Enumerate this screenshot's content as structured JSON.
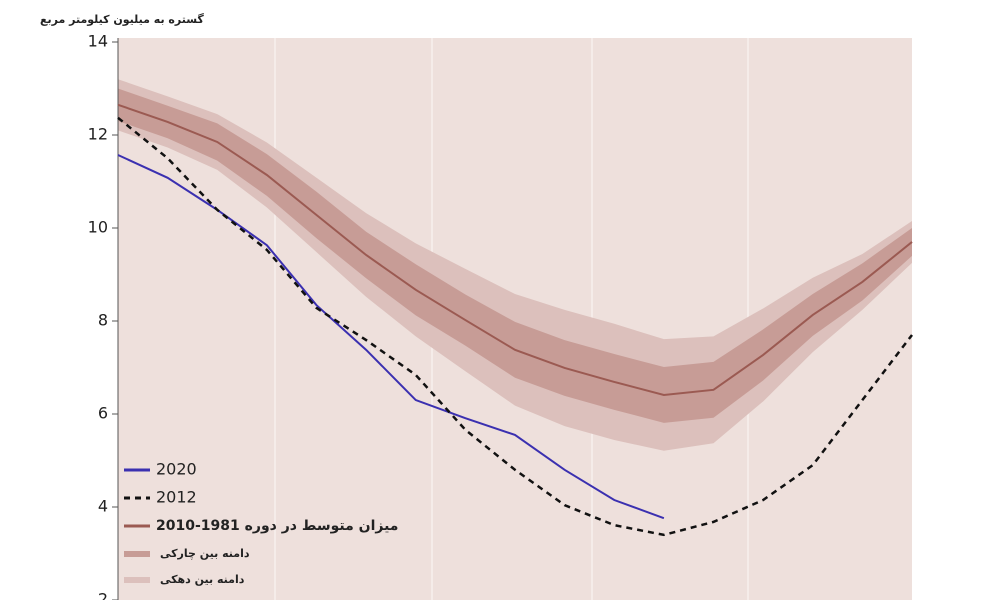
{
  "chart_data": {
    "type": "line",
    "y_label": "گستره به میلیون کیلومتر مربع",
    "categories": [
      null,
      null,
      null,
      null,
      null,
      null,
      null,
      null,
      null,
      null,
      null,
      null,
      null,
      null,
      null,
      null,
      null
    ],
    "ylim": [
      2,
      14
    ],
    "yticks": [
      2,
      4,
      6,
      8,
      10,
      12,
      14
    ],
    "bands": [
      {
        "name": "دامنه بین دهکی",
        "color": "#dcc0bc",
        "high": [
          13.2,
          12.83,
          12.45,
          11.84,
          11.08,
          10.32,
          9.67,
          9.12,
          8.58,
          8.24,
          7.94,
          7.61,
          7.67,
          8.27,
          8.93,
          9.44,
          10.15
        ],
        "low": [
          12.1,
          11.73,
          11.25,
          10.44,
          9.48,
          8.52,
          7.67,
          6.92,
          6.18,
          5.74,
          5.44,
          5.21,
          5.37,
          6.27,
          7.33,
          8.24,
          9.25
        ]
      },
      {
        "name": "دامنه بین چارکی",
        "color": "#c79c96",
        "high": [
          13.0,
          12.63,
          12.25,
          11.59,
          10.78,
          9.92,
          9.22,
          8.57,
          7.98,
          7.59,
          7.29,
          7.01,
          7.12,
          7.82,
          8.58,
          9.24,
          10.0
        ],
        "low": [
          12.3,
          11.93,
          11.45,
          10.69,
          9.78,
          8.92,
          8.12,
          7.47,
          6.78,
          6.39,
          6.09,
          5.81,
          5.92,
          6.72,
          7.68,
          8.44,
          9.4
        ]
      }
    ],
    "series": [
      {
        "name": "2020",
        "color": "#3b30b0",
        "dash": false,
        "values": [
          11.57,
          11.08,
          10.39,
          9.63,
          8.34,
          7.38,
          6.3,
          5.91,
          5.55,
          4.8,
          4.15,
          3.76,
          null,
          null,
          null,
          null,
          null
        ]
      },
      {
        "name": "2012",
        "color": "#111111",
        "dash": true,
        "values": [
          12.37,
          11.5,
          10.39,
          9.53,
          8.28,
          7.59,
          6.84,
          5.66,
          4.8,
          4.04,
          3.61,
          3.4,
          3.68,
          4.15,
          4.9,
          6.3,
          7.7
        ]
      },
      {
        "name": "میزان متوسط در دوره 1981-2010",
        "color": "#9b5a52",
        "dash": false,
        "values": [
          12.65,
          12.28,
          11.85,
          11.14,
          10.28,
          9.42,
          8.67,
          8.02,
          7.38,
          6.99,
          6.69,
          6.41,
          6.52,
          7.27,
          8.13,
          8.84,
          9.7
        ]
      }
    ]
  }
}
